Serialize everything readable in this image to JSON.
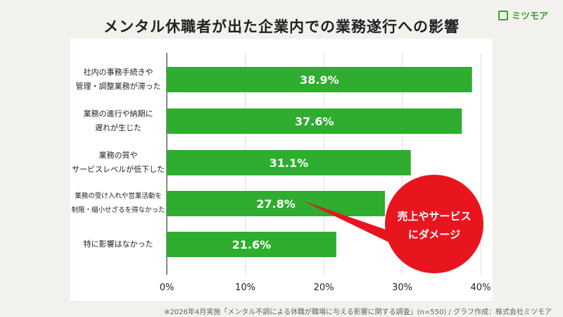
{
  "title": "メンタル休職者が出た企業内での業務遂行への影響",
  "logo": "ミツモア",
  "footnote": "※2026年4月実施「メンタル不調による休職が職場に与える影響に関する調査」(n=550) / グラフ作成：株式会社ミツモア",
  "callout": [
    "売上やサービス",
    "にダメージ"
  ],
  "colors": {
    "bar": "#2ead2e",
    "callout": "#e8151e"
  },
  "chart_data": {
    "type": "bar",
    "orientation": "horizontal",
    "categories": [
      [
        "社内の事務手続きや",
        "管理・調整業務が滞った"
      ],
      [
        "業務の進行や納期に",
        "遅れが生じた"
      ],
      [
        "業務の質や",
        "サービスレベルが低下した"
      ],
      [
        "業務の受け入れや営業活動を",
        "制限・縮小せざるを得なかった"
      ],
      [
        "特に影響はなかった"
      ]
    ],
    "values": [
      38.9,
      37.6,
      31.1,
      27.8,
      21.6
    ],
    "xlim": [
      0,
      40
    ],
    "ticks": [
      "0%",
      "10%",
      "20%",
      "30%",
      "40%"
    ],
    "grid": true
  }
}
